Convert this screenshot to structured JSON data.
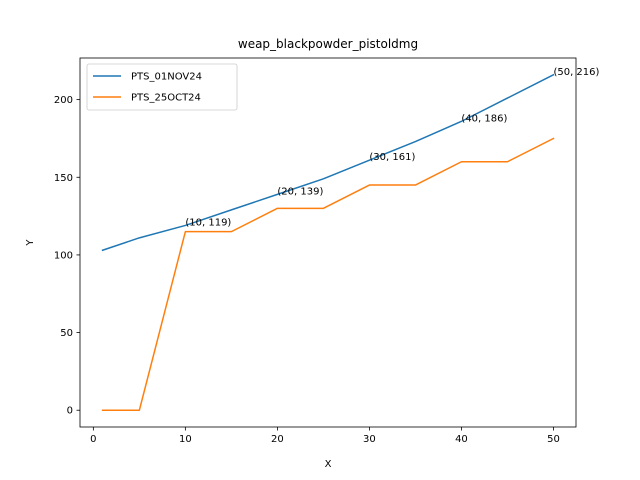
{
  "chart_data": {
    "type": "line",
    "title": "weap_blackpowder_pistoldmg",
    "xlabel": "X",
    "ylabel": "Y",
    "xlim": [
      -1.45,
      52.45
    ],
    "ylim": [
      -10.8,
      226.8
    ],
    "xticks": [
      0,
      10,
      20,
      30,
      40,
      50
    ],
    "yticks": [
      0,
      50,
      100,
      150,
      200
    ],
    "grid": false,
    "legend_position": "top-left",
    "series": [
      {
        "name": "PTS_01NOV24",
        "color": "#1f77b4",
        "x": [
          1,
          5,
          10,
          15,
          20,
          25,
          30,
          35,
          40,
          45,
          50
        ],
        "y": [
          103,
          111,
          119,
          129,
          139,
          149,
          161,
          173,
          186,
          201,
          216
        ]
      },
      {
        "name": "PTS_25OCT24",
        "color": "#ff7f0e",
        "x": [
          1,
          5,
          10,
          15,
          20,
          25,
          30,
          35,
          40,
          45,
          50
        ],
        "y": [
          0,
          0,
          115,
          115,
          130,
          130,
          145,
          145,
          160,
          160,
          175
        ]
      }
    ],
    "annotations": [
      {
        "text": "(10, 119)",
        "x": 10,
        "y": 119
      },
      {
        "text": "(20, 139)",
        "x": 20,
        "y": 139
      },
      {
        "text": "(30, 161)",
        "x": 30,
        "y": 161
      },
      {
        "text": "(40, 186)",
        "x": 40,
        "y": 186
      },
      {
        "text": "(50, 216)",
        "x": 50,
        "y": 216
      }
    ]
  }
}
